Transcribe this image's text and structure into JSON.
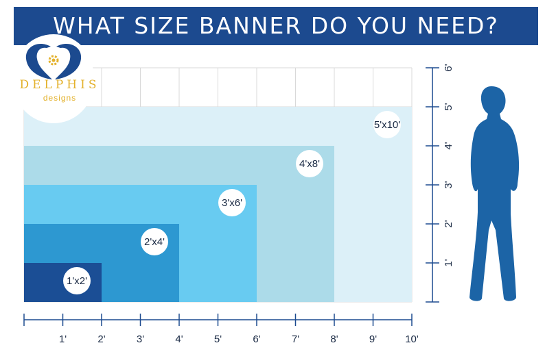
{
  "header": {
    "title": "WHAT SIZE BANNER DO YOU NEED?"
  },
  "logo": {
    "brand": "DELPHIS",
    "tagline": "designs"
  },
  "colors": {
    "header": "#1c4a8f",
    "banner_1x2": "#1b4e95",
    "banner_2x4": "#2d98d1",
    "banner_3x6": "#68cbf1",
    "banner_4x8": "#acdbe9",
    "banner_5x10": "#dcf0f8",
    "axis": "#1c4a8f",
    "silhouette": "#1c64a6",
    "logo_accent": "#e3b12b"
  },
  "chart_data": {
    "type": "area",
    "banners": [
      {
        "label": "1'x2'",
        "width_ft": 2,
        "height_ft": 1
      },
      {
        "label": "2'x4'",
        "width_ft": 4,
        "height_ft": 2
      },
      {
        "label": "3'x6'",
        "width_ft": 6,
        "height_ft": 3
      },
      {
        "label": "4'x8'",
        "width_ft": 8,
        "height_ft": 4
      },
      {
        "label": "5'x10'",
        "width_ft": 10,
        "height_ft": 5
      }
    ],
    "x_axis": {
      "ticks": [
        "1'",
        "2'",
        "3'",
        "4'",
        "5'",
        "6'",
        "7'",
        "8'",
        "9'",
        "10'"
      ],
      "range": [
        0,
        10
      ]
    },
    "y_axis": {
      "ticks": [
        "1'",
        "2'",
        "3'",
        "4'",
        "5'",
        "6'"
      ],
      "range": [
        0,
        6
      ]
    },
    "grid": true
  }
}
